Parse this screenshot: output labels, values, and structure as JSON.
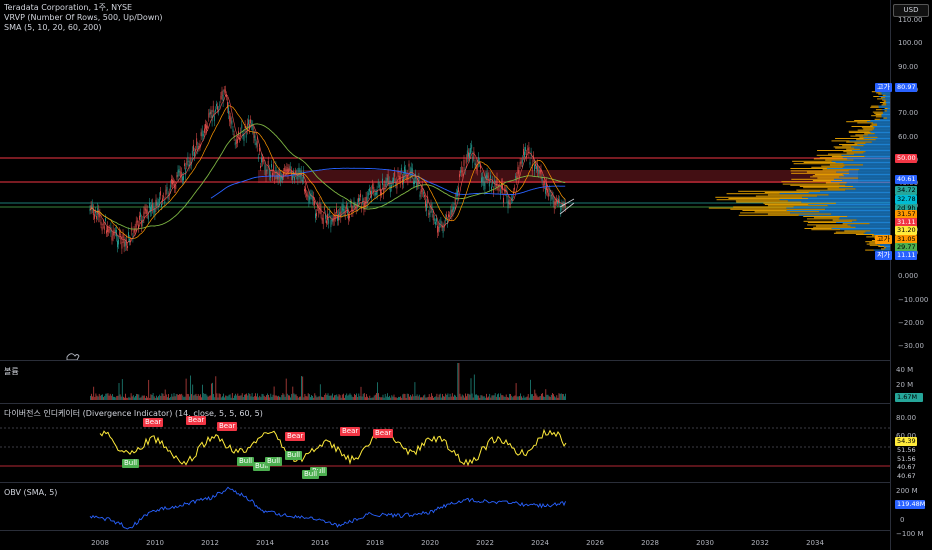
{
  "legend": {
    "line1": "Teradata Corporation, 1주, NYSE",
    "line2": "VRVP (Number Of Rows, 500, Up/Down)",
    "line3": "SMA (5, 10, 20, 60, 200)"
  },
  "currency_button": "USD",
  "price_axis": [
    "110.00",
    "100.00",
    "90.00",
    "80.00",
    "70.00",
    "60.00",
    "50.00",
    "40.00",
    "30.00",
    "20.00",
    "10.00",
    "0.000",
    "−10.000",
    "−20.00",
    "−30.00"
  ],
  "price_tags": [
    {
      "label": "고가",
      "value": "80.97",
      "color": "#2962ff",
      "text": "#ffffff"
    },
    {
      "label": "",
      "value": "50.00",
      "color": "#f23645",
      "text": "#ffffff"
    },
    {
      "label": "",
      "value": "40.61",
      "color": "#2962ff",
      "text": "#ffffff"
    },
    {
      "label": "",
      "value": "34.72",
      "color": "#26a69a",
      "text": "#000000"
    },
    {
      "label": "",
      "value": "32.78",
      "color": "#00bcd4",
      "text": "#000000"
    },
    {
      "label": "",
      "value": "2d 9h",
      "color": "#26a69a",
      "text": "#000000"
    },
    {
      "label": "",
      "value": "31.57",
      "color": "#ff9800",
      "text": "#000000"
    },
    {
      "label": "",
      "value": "31.11",
      "color": "#f23645",
      "text": "#ffffff"
    },
    {
      "label": "",
      "value": "31.20",
      "color": "#ffeb3b",
      "text": "#000000"
    },
    {
      "label": "고가",
      "value": "31.05",
      "color": "#ff9800",
      "text": "#000000"
    },
    {
      "label": "",
      "value": "29.77",
      "color": "#4caf50",
      "text": "#000000"
    },
    {
      "label": "저가",
      "value": "11.11",
      "color": "#2962ff",
      "text": "#ffffff"
    }
  ],
  "volume_pane": {
    "title": "볼륨",
    "axis": [
      "40 M",
      "20 M"
    ],
    "last": "1.67M"
  },
  "div_pane": {
    "title": "다이버전스 인디케이터 (Divergence Indicator) (14, close, 5, 5, 60, 5)",
    "axis": [
      "80.00",
      "60.00"
    ],
    "tags": [
      "54.39",
      "51.56",
      "51.56",
      "40.67",
      "40.67"
    ],
    "bear_label": "Bear",
    "bull_label": "Bull"
  },
  "obv_pane": {
    "title": "OBV (SMA, 5)",
    "axis": [
      "200 M",
      "0",
      "−100 M"
    ],
    "last": "119.48M"
  },
  "time_axis": [
    "2008",
    "2010",
    "2012",
    "2014",
    "2016",
    "2018",
    "2020",
    "2022",
    "2024",
    "2026",
    "2028",
    "2030",
    "2032",
    "2034"
  ],
  "colors": {
    "background": "#000000",
    "up": "#26a69a",
    "down": "#ef5350",
    "sma200": "#2962ff",
    "resistance": "#f23645",
    "divergence_line": "#ffeb3b",
    "obv": "#2962ff",
    "vp_up": "#2196f3",
    "vp_down": "#ffb300"
  }
}
